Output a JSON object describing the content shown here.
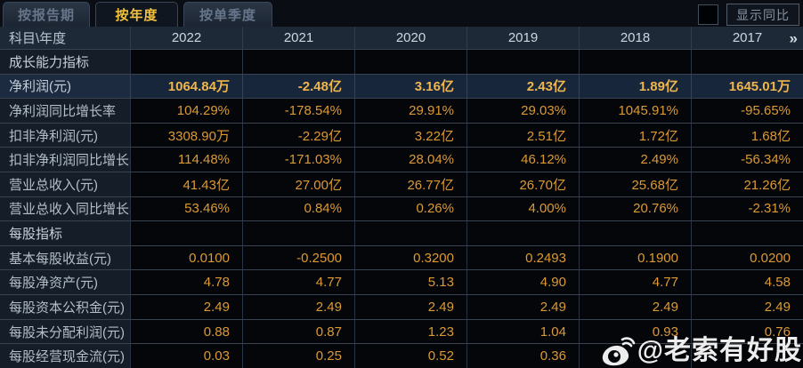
{
  "tabs": [
    {
      "label": "按报告期",
      "active": false
    },
    {
      "label": "按年度",
      "active": true
    },
    {
      "label": "按单季度",
      "active": false
    }
  ],
  "controls": {
    "compare_checkbox_checked": false,
    "compare_label": "显示同比"
  },
  "table": {
    "corner_label": "科目\\年度",
    "years": [
      "2022",
      "2021",
      "2020",
      "2019",
      "2018",
      "2017"
    ],
    "more_icon": "»",
    "rows": [
      {
        "type": "section",
        "label": "成长能力指标",
        "values": [
          "",
          "",
          "",
          "",
          "",
          ""
        ]
      },
      {
        "type": "data",
        "highlight": true,
        "label": "净利润(元)",
        "values": [
          "1064.84万",
          "-2.48亿",
          "3.16亿",
          "2.43亿",
          "1.89亿",
          "1645.01万"
        ]
      },
      {
        "type": "data",
        "highlight": false,
        "label": "净利润同比增长率",
        "values": [
          "104.29%",
          "-178.54%",
          "29.91%",
          "29.03%",
          "1045.91%",
          "-95.65%"
        ]
      },
      {
        "type": "data",
        "highlight": false,
        "label": "扣非净利润(元)",
        "values": [
          "3308.90万",
          "-2.29亿",
          "3.22亿",
          "2.51亿",
          "1.72亿",
          "1.68亿"
        ]
      },
      {
        "type": "data",
        "highlight": false,
        "label": "扣非净利润同比增长率",
        "values": [
          "114.48%",
          "-171.03%",
          "28.04%",
          "46.12%",
          "2.49%",
          "-56.34%"
        ]
      },
      {
        "type": "data",
        "highlight": false,
        "label": "营业总收入(元)",
        "values": [
          "41.43亿",
          "27.00亿",
          "26.77亿",
          "26.70亿",
          "25.68亿",
          "21.26亿"
        ]
      },
      {
        "type": "data",
        "highlight": false,
        "label": "营业总收入同比增长率",
        "values": [
          "53.46%",
          "0.84%",
          "0.26%",
          "4.00%",
          "20.76%",
          "-2.31%"
        ]
      },
      {
        "type": "section",
        "label": "每股指标",
        "values": [
          "",
          "",
          "",
          "",
          "",
          ""
        ]
      },
      {
        "type": "data",
        "highlight": false,
        "label": "基本每股收益(元)",
        "values": [
          "0.0100",
          "-0.2500",
          "0.3200",
          "0.2493",
          "0.1900",
          "0.0200"
        ]
      },
      {
        "type": "data",
        "highlight": false,
        "label": "每股净资产(元)",
        "values": [
          "4.78",
          "4.77",
          "5.13",
          "4.90",
          "4.77",
          "4.58"
        ]
      },
      {
        "type": "data",
        "highlight": false,
        "label": "每股资本公积金(元)",
        "values": [
          "2.49",
          "2.49",
          "2.49",
          "2.49",
          "2.49",
          "2.49"
        ]
      },
      {
        "type": "data",
        "highlight": false,
        "label": "每股未分配利润(元)",
        "values": [
          "0.88",
          "0.87",
          "1.23",
          "1.04",
          "0.93",
          "0.76"
        ]
      },
      {
        "type": "data",
        "highlight": false,
        "label": "每股经营现金流(元)",
        "values": [
          "0.03",
          "0.25",
          "0.52",
          "0.36",
          "",
          ""
        ]
      }
    ]
  },
  "watermark": {
    "text": "@老索有好股"
  },
  "colors": {
    "accent_gold": "#f3c23c",
    "value_orange": "#dd9a33",
    "highlight_value": "#efb64e",
    "highlight_row_bg": "#18263b",
    "header_bg": "#1d2937",
    "label_col_bg": "#151d28",
    "data_bg": "#04060a"
  }
}
